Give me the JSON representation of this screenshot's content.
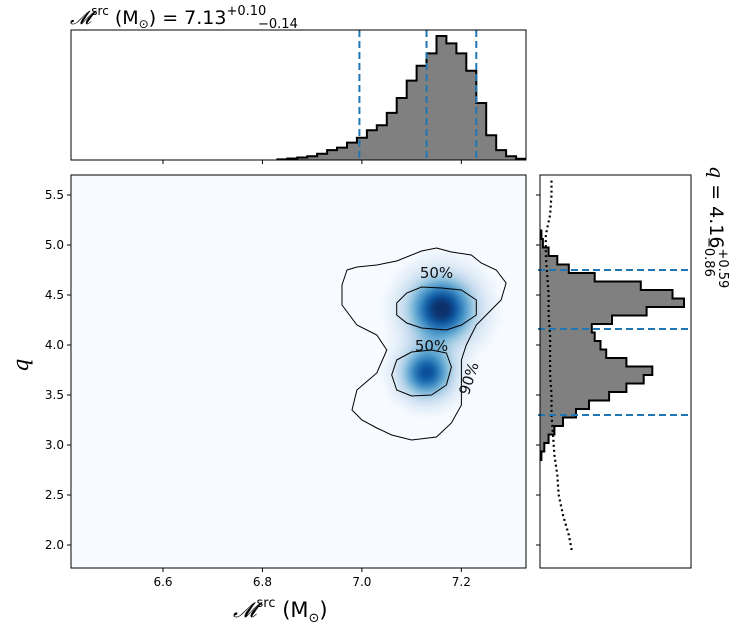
{
  "chart_data": {
    "type": "corner-plot",
    "title_top": {
      "symbol": "𝓜",
      "sup": "src",
      "unit": " (M",
      "unit_sub": "⊙",
      "unit_close": ")",
      "equals": " = 7.13",
      "plus": "+0.10",
      "minus": "−0.14"
    },
    "title_right": {
      "symbol": "q",
      "equals": " = 4.16",
      "plus": "+0.59",
      "minus": "−0.86"
    },
    "xlabel": {
      "symbol": "𝓜",
      "sup": "src",
      "unit": " (M",
      "unit_sub": "⊙",
      "unit_close": ")"
    },
    "ylabel": "q",
    "xlim": [
      6.415,
      7.33
    ],
    "ylim": [
      1.77,
      5.7
    ],
    "x_ticks": [
      "6.6",
      "6.8",
      "7.0",
      "7.2"
    ],
    "x_tick_values": [
      6.6,
      6.8,
      7.0,
      7.2
    ],
    "y_ticks": [
      "2.0",
      "2.5",
      "3.0",
      "3.5",
      "4.0",
      "4.5",
      "5.0",
      "5.5"
    ],
    "y_tick_values": [
      2.0,
      2.5,
      3.0,
      3.5,
      4.0,
      4.5,
      5.0,
      5.5
    ],
    "contour_labels": [
      "50%",
      "50%",
      "90%"
    ],
    "mc_quantiles": [
      6.995,
      7.13,
      7.23
    ],
    "q_quantiles": [
      3.3,
      4.16,
      4.75
    ],
    "mc_hist": {
      "bin_width": 0.02,
      "bins": [
        [
          6.83,
          0.005
        ],
        [
          6.85,
          0.012
        ],
        [
          6.87,
          0.02
        ],
        [
          6.89,
          0.03
        ],
        [
          6.91,
          0.05
        ],
        [
          6.93,
          0.08
        ],
        [
          6.95,
          0.1
        ],
        [
          6.97,
          0.14
        ],
        [
          6.99,
          0.18
        ],
        [
          7.01,
          0.24
        ],
        [
          7.03,
          0.28
        ],
        [
          7.05,
          0.38
        ],
        [
          7.07,
          0.5
        ],
        [
          7.09,
          0.64
        ],
        [
          7.11,
          0.76
        ],
        [
          7.13,
          0.86
        ],
        [
          7.15,
          1.0
        ],
        [
          7.17,
          0.94
        ],
        [
          7.19,
          0.86
        ],
        [
          7.21,
          0.72
        ],
        [
          7.23,
          0.46
        ],
        [
          7.25,
          0.2
        ],
        [
          7.27,
          0.08
        ],
        [
          7.29,
          0.03
        ],
        [
          7.31,
          0.01
        ]
      ]
    },
    "q_hist": {
      "bin_width": 0.085,
      "bins": [
        [
          2.85,
          0.01
        ],
        [
          2.935,
          0.03
        ],
        [
          3.02,
          0.06
        ],
        [
          3.105,
          0.1
        ],
        [
          3.19,
          0.16
        ],
        [
          3.275,
          0.25
        ],
        [
          3.36,
          0.34
        ],
        [
          3.445,
          0.48
        ],
        [
          3.53,
          0.6
        ],
        [
          3.615,
          0.72
        ],
        [
          3.7,
          0.78
        ],
        [
          3.785,
          0.6
        ],
        [
          3.87,
          0.46
        ],
        [
          3.955,
          0.42
        ],
        [
          4.04,
          0.38
        ],
        [
          4.125,
          0.36
        ],
        [
          4.21,
          0.5
        ],
        [
          4.295,
          0.74
        ],
        [
          4.38,
          1.0
        ],
        [
          4.465,
          0.92
        ],
        [
          4.55,
          0.7
        ],
        [
          4.635,
          0.38
        ],
        [
          4.72,
          0.2
        ],
        [
          4.805,
          0.12
        ],
        [
          4.89,
          0.06
        ],
        [
          4.975,
          0.02
        ],
        [
          5.06,
          0.01
        ]
      ]
    },
    "q_prior_curve": [
      [
        1.95,
        0.22
      ],
      [
        2.1,
        0.2
      ],
      [
        2.3,
        0.16
      ],
      [
        2.5,
        0.13
      ],
      [
        2.7,
        0.12
      ],
      [
        2.9,
        0.1
      ],
      [
        3.1,
        0.09
      ],
      [
        3.3,
        0.08
      ],
      [
        3.5,
        0.08
      ],
      [
        3.7,
        0.07
      ],
      [
        3.9,
        0.07
      ],
      [
        4.1,
        0.07
      ],
      [
        4.3,
        0.06
      ],
      [
        4.5,
        0.06
      ],
      [
        4.7,
        0.05
      ],
      [
        4.9,
        0.04
      ],
      [
        5.1,
        0.04
      ],
      [
        5.3,
        0.07
      ],
      [
        5.5,
        0.08
      ],
      [
        5.65,
        0.08
      ]
    ],
    "density_blobs": [
      {
        "x": 7.16,
        "y": 4.36,
        "sx": 0.045,
        "sy": 0.22,
        "w": 1.0
      },
      {
        "x": 7.13,
        "y": 3.72,
        "sx": 0.035,
        "sy": 0.17,
        "w": 0.85
      }
    ],
    "contour_90": [
      [
        6.97,
        4.75
      ],
      [
        6.99,
        4.78
      ],
      [
        7.03,
        4.8
      ],
      [
        7.07,
        4.84
      ],
      [
        7.12,
        4.94
      ],
      [
        7.15,
        4.97
      ],
      [
        7.18,
        4.93
      ],
      [
        7.22,
        4.9
      ],
      [
        7.24,
        4.82
      ],
      [
        7.27,
        4.75
      ],
      [
        7.29,
        4.62
      ],
      [
        7.28,
        4.45
      ],
      [
        7.25,
        4.3
      ],
      [
        7.23,
        4.2
      ],
      [
        7.21,
        4.0
      ],
      [
        7.2,
        3.85
      ],
      [
        7.2,
        3.6
      ],
      [
        7.2,
        3.4
      ],
      [
        7.18,
        3.22
      ],
      [
        7.15,
        3.08
      ],
      [
        7.1,
        3.05
      ],
      [
        7.06,
        3.1
      ],
      [
        7.03,
        3.17
      ],
      [
        7.0,
        3.25
      ],
      [
        6.98,
        3.35
      ],
      [
        6.99,
        3.55
      ],
      [
        7.03,
        3.72
      ],
      [
        7.05,
        3.95
      ],
      [
        7.03,
        4.1
      ],
      [
        6.99,
        4.2
      ],
      [
        6.96,
        4.4
      ],
      [
        6.96,
        4.6
      ],
      [
        6.97,
        4.75
      ]
    ],
    "contour_50_upper": [
      [
        7.07,
        4.42
      ],
      [
        7.09,
        4.52
      ],
      [
        7.12,
        4.58
      ],
      [
        7.16,
        4.57
      ],
      [
        7.2,
        4.55
      ],
      [
        7.23,
        4.45
      ],
      [
        7.23,
        4.3
      ],
      [
        7.2,
        4.2
      ],
      [
        7.17,
        4.15
      ],
      [
        7.12,
        4.17
      ],
      [
        7.09,
        4.22
      ],
      [
        7.07,
        4.3
      ],
      [
        7.07,
        4.42
      ]
    ],
    "contour_50_lower": [
      [
        7.07,
        3.85
      ],
      [
        7.1,
        3.93
      ],
      [
        7.14,
        3.95
      ],
      [
        7.17,
        3.92
      ],
      [
        7.18,
        3.78
      ],
      [
        7.17,
        3.6
      ],
      [
        7.14,
        3.5
      ],
      [
        7.1,
        3.49
      ],
      [
        7.07,
        3.55
      ],
      [
        7.06,
        3.7
      ],
      [
        7.07,
        3.85
      ]
    ]
  }
}
